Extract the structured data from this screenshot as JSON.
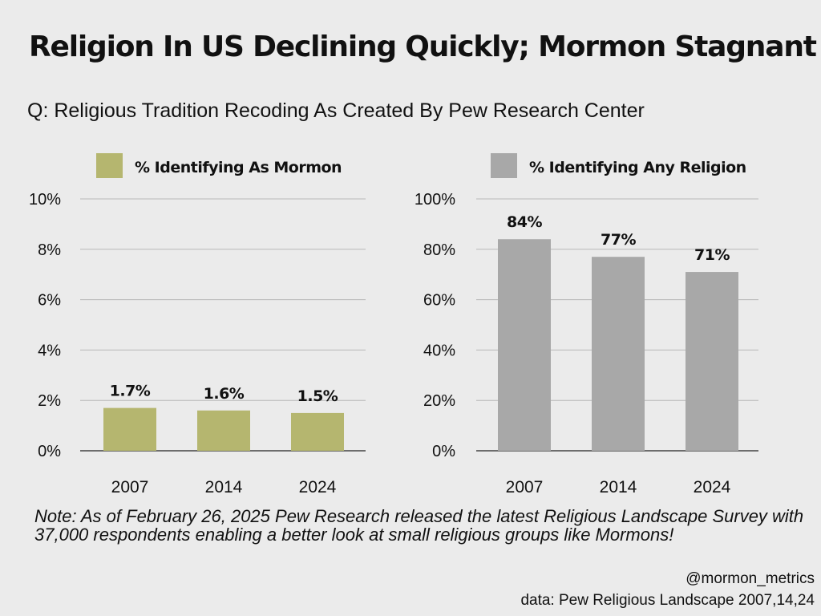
{
  "header": {
    "title": "Religion In US Declining Quickly; Mormon Stagnant",
    "subtitle": "Q: Religious Tradition Recoding As Created By Pew Research Center"
  },
  "note": "Note: As of February 26, 2025 Pew Research released the latest Religious Landscape Survey with 37,000 respondents enabling a better look at small religious groups like Mormons!",
  "footer": {
    "handle": "@mormon_metrics",
    "source": "data: Pew Religious Landscape 2007,14,24"
  },
  "chart_data": [
    {
      "type": "bar",
      "categories": [
        "2007",
        "2014",
        "2024"
      ],
      "series": [
        {
          "name": "% Identifying As Mormon",
          "values": [
            1.7,
            1.6,
            1.5
          ],
          "color": "#b5b66f"
        }
      ],
      "data_labels": [
        "1.7%",
        "1.6%",
        "1.5%"
      ],
      "ylim": [
        0,
        10
      ],
      "yticks": [
        0,
        2,
        4,
        6,
        8,
        10
      ],
      "ytick_labels": [
        "0%",
        "2%",
        "4%",
        "6%",
        "8%",
        "10%"
      ],
      "grid": true,
      "legend_position": "top-center"
    },
    {
      "type": "bar",
      "categories": [
        "2007",
        "2014",
        "2024"
      ],
      "series": [
        {
          "name": "% Identifying Any Religion",
          "values": [
            84,
            77,
            71
          ],
          "color": "#a8a8a8"
        }
      ],
      "data_labels": [
        "84%",
        "77%",
        "71%"
      ],
      "ylim": [
        0,
        100
      ],
      "yticks": [
        0,
        20,
        40,
        60,
        80,
        100
      ],
      "ytick_labels": [
        "0%",
        "20%",
        "40%",
        "60%",
        "80%",
        "100%"
      ],
      "grid": true,
      "legend_position": "top-center"
    }
  ]
}
